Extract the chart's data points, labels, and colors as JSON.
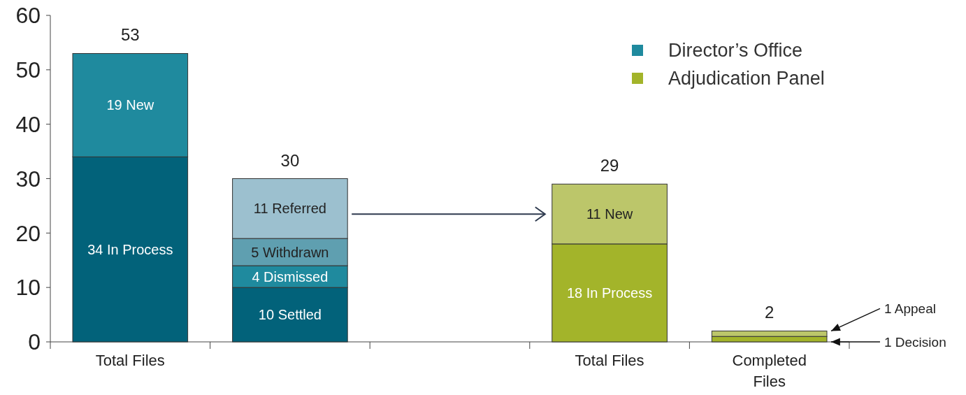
{
  "chart_data": {
    "type": "bar",
    "stacked": true,
    "categories": [
      "Total Files",
      null,
      null,
      "Total Files",
      "Completed Files"
    ],
    "series": [
      {
        "color": "#02627a",
        "values": [
          34,
          10,
          null,
          null,
          null
        ],
        "value_labels": [
          "34 In Process",
          "10 Settled",
          null,
          null,
          null
        ]
      },
      {
        "name": "Director’s Office",
        "color": "#1f8a9e",
        "values": [
          19,
          4,
          null,
          null,
          null
        ],
        "value_labels": [
          "19 New",
          "4 Dismissed",
          null,
          null,
          null
        ]
      },
      {
        "color": "#5f9fb0",
        "values": [
          null,
          5,
          null,
          null,
          null
        ],
        "value_labels": [
          null,
          "5 Withdrawn",
          null,
          null,
          null
        ]
      },
      {
        "color": "#9cc0cf",
        "values": [
          null,
          11,
          null,
          null,
          null
        ],
        "value_labels": [
          null,
          "11 Referred",
          null,
          null,
          null
        ]
      },
      {
        "name": "Adjudication Panel",
        "color": "#a3b42a",
        "values": [
          null,
          null,
          null,
          18,
          1
        ],
        "value_labels": [
          null,
          null,
          null,
          "18 In Process",
          null
        ]
      },
      {
        "color": "#bcc66a",
        "values": [
          null,
          null,
          null,
          11,
          1
        ],
        "value_labels": [
          null,
          null,
          null,
          "11 New",
          null
        ]
      }
    ],
    "totals": [
      "53",
      "30",
      null,
      "29",
      "2"
    ],
    "annotations": [
      "1 Appeal",
      "1 Decision"
    ],
    "ylim": [
      0,
      60
    ],
    "yticks": [
      0,
      10,
      20,
      30,
      40,
      50,
      60
    ],
    "legend": "top right"
  }
}
